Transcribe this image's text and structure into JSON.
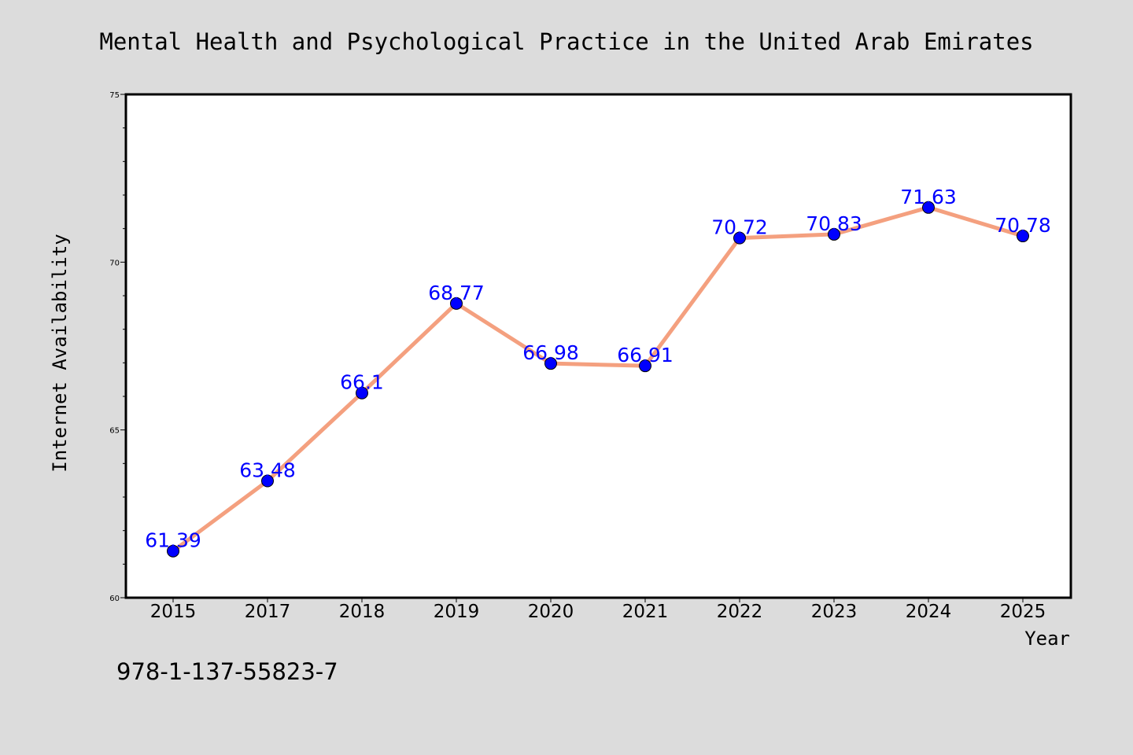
{
  "chart_data": {
    "type": "line",
    "title": "Mental Health and Psychological Practice in the United Arab Emirates",
    "xlabel": "Year",
    "ylabel": "Internet Availability",
    "categories": [
      "2015",
      "2017",
      "2018",
      "2019",
      "2020",
      "2021",
      "2022",
      "2023",
      "2024",
      "2025"
    ],
    "series": [
      {
        "values": [
          61.39,
          63.48,
          66.1,
          68.77,
          66.98,
          66.91,
          70.72,
          70.83,
          71.63,
          70.78
        ],
        "labels": [
          "61.39",
          "63.48",
          "66.1",
          "68.77",
          "66.98",
          "66.91",
          "70.72",
          "70.83",
          "71.63",
          "70.78"
        ],
        "line_color": "#f4a07f",
        "marker_color": "#0000ff"
      }
    ],
    "ylim": [
      60,
      75
    ],
    "yticks": [
      60,
      65,
      70,
      75
    ],
    "ytick_labels": [
      "60",
      "65",
      "70",
      "75"
    ],
    "grid": false,
    "legend": "none"
  },
  "footer": {
    "isbn": "978-1-137-55823-7"
  },
  "colors": {
    "background": "#dcdcdc",
    "plot_background": "#ffffff",
    "line": "#f4a07f",
    "marker": "#0000ff",
    "data_label": "#0000ff"
  }
}
